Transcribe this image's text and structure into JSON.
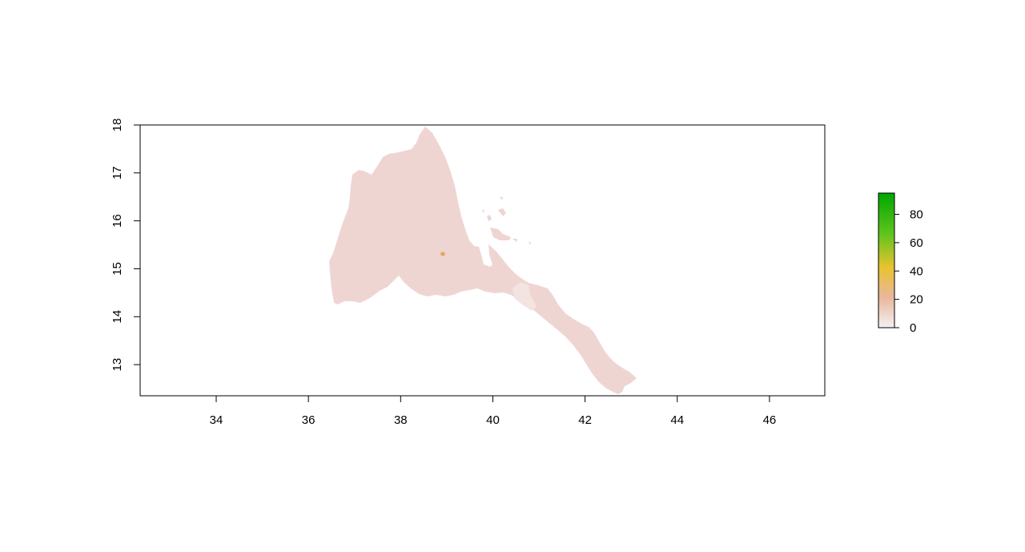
{
  "map": {
    "x_axis": {
      "range": [
        32.35,
        47.2
      ],
      "ticks": [
        34,
        36,
        38,
        40,
        42,
        44,
        46
      ],
      "tick_labels": [
        "34",
        "36",
        "38",
        "40",
        "42",
        "44",
        "46"
      ]
    },
    "y_axis": {
      "range": [
        12.35,
        18.0
      ],
      "ticks": [
        13,
        14,
        15,
        16,
        17,
        18
      ],
      "tick_labels": [
        "13",
        "14",
        "15",
        "16",
        "17",
        "18"
      ]
    },
    "fill_color": "#efd5d2",
    "legend": {
      "placement": "right",
      "range": [
        0,
        95
      ],
      "ticks": [
        0,
        20,
        40,
        60,
        80
      ],
      "tick_labels": [
        "0",
        "20",
        "40",
        "60",
        "80"
      ],
      "colors": [
        "#f2f2f2",
        "#e9b79d",
        "#e8c32e",
        "#5ec41d",
        "#00a600"
      ]
    }
  }
}
